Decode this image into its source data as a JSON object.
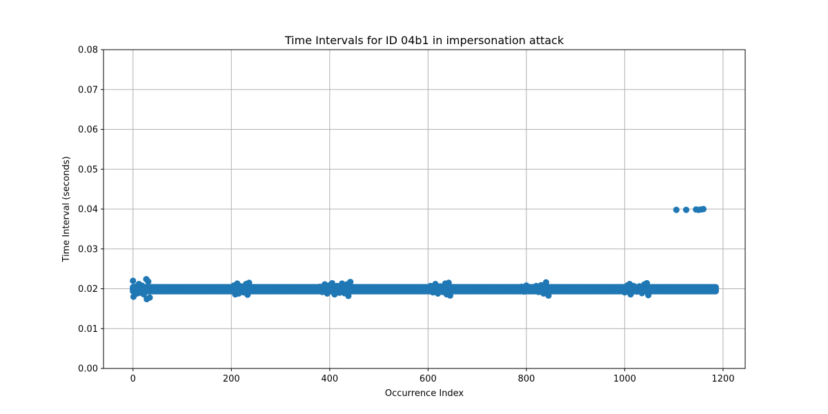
{
  "chart_data": {
    "type": "scatter",
    "title": "Time Intervals for ID 04b1 in impersonation attack",
    "xlabel": "Occurrence Index",
    "ylabel": "Time Interval (seconds)",
    "xlim": [
      -60,
      1245
    ],
    "ylim": [
      0.0,
      0.08
    ],
    "xticks": [
      0,
      200,
      400,
      600,
      800,
      1000,
      1200
    ],
    "xtick_labels": [
      "0",
      "200",
      "400",
      "600",
      "800",
      "1000",
      "1200"
    ],
    "yticks": [
      0.0,
      0.01,
      0.02,
      0.03,
      0.04,
      0.05,
      0.06,
      0.07,
      0.08
    ],
    "ytick_labels": [
      "0.00",
      "0.01",
      "0.02",
      "0.03",
      "0.04",
      "0.05",
      "0.06",
      "0.07",
      "0.08"
    ],
    "grid": true,
    "marker_color": "#1f77b4",
    "baseline_band": {
      "x_range": [
        0,
        1185
      ],
      "y_range": [
        0.0194,
        0.0204
      ]
    },
    "series": [
      {
        "points": [
          {
            "x": 0,
            "y": 0.022
          },
          {
            "x": 1,
            "y": 0.018
          },
          {
            "x": 5,
            "y": 0.0205
          },
          {
            "x": 8,
            "y": 0.0188
          },
          {
            "x": 12,
            "y": 0.0212
          },
          {
            "x": 15,
            "y": 0.019
          },
          {
            "x": 18,
            "y": 0.0208
          },
          {
            "x": 22,
            "y": 0.0186
          },
          {
            "x": 27,
            "y": 0.0224
          },
          {
            "x": 28,
            "y": 0.0174
          },
          {
            "x": 31,
            "y": 0.0218
          },
          {
            "x": 34,
            "y": 0.0178
          },
          {
            "x": 85,
            "y": 0.0202
          },
          {
            "x": 150,
            "y": 0.0201
          },
          {
            "x": 175,
            "y": 0.0199
          },
          {
            "x": 205,
            "y": 0.0208
          },
          {
            "x": 208,
            "y": 0.0186
          },
          {
            "x": 212,
            "y": 0.0213
          },
          {
            "x": 215,
            "y": 0.0188
          },
          {
            "x": 220,
            "y": 0.0206
          },
          {
            "x": 225,
            "y": 0.0191
          },
          {
            "x": 230,
            "y": 0.0212
          },
          {
            "x": 233,
            "y": 0.0185
          },
          {
            "x": 236,
            "y": 0.0215
          },
          {
            "x": 290,
            "y": 0.0201
          },
          {
            "x": 320,
            "y": 0.0202
          },
          {
            "x": 350,
            "y": 0.0199
          },
          {
            "x": 380,
            "y": 0.0205
          },
          {
            "x": 385,
            "y": 0.0192
          },
          {
            "x": 390,
            "y": 0.0211
          },
          {
            "x": 395,
            "y": 0.0188
          },
          {
            "x": 400,
            "y": 0.0209
          },
          {
            "x": 405,
            "y": 0.0214
          },
          {
            "x": 410,
            "y": 0.0186
          },
          {
            "x": 415,
            "y": 0.0207
          },
          {
            "x": 420,
            "y": 0.019
          },
          {
            "x": 425,
            "y": 0.0213
          },
          {
            "x": 430,
            "y": 0.0189
          },
          {
            "x": 435,
            "y": 0.0211
          },
          {
            "x": 438,
            "y": 0.0182
          },
          {
            "x": 442,
            "y": 0.0217
          },
          {
            "x": 490,
            "y": 0.0196
          },
          {
            "x": 560,
            "y": 0.0201
          },
          {
            "x": 605,
            "y": 0.0207
          },
          {
            "x": 610,
            "y": 0.0191
          },
          {
            "x": 615,
            "y": 0.0212
          },
          {
            "x": 620,
            "y": 0.0188
          },
          {
            "x": 625,
            "y": 0.0206
          },
          {
            "x": 630,
            "y": 0.0192
          },
          {
            "x": 635,
            "y": 0.0213
          },
          {
            "x": 638,
            "y": 0.0186
          },
          {
            "x": 642,
            "y": 0.0215
          },
          {
            "x": 645,
            "y": 0.0183
          },
          {
            "x": 705,
            "y": 0.0202
          },
          {
            "x": 750,
            "y": 0.0199
          },
          {
            "x": 790,
            "y": 0.0205
          },
          {
            "x": 795,
            "y": 0.0193
          },
          {
            "x": 800,
            "y": 0.0208
          },
          {
            "x": 815,
            "y": 0.0195
          },
          {
            "x": 820,
            "y": 0.0207
          },
          {
            "x": 825,
            "y": 0.0192
          },
          {
            "x": 830,
            "y": 0.0209
          },
          {
            "x": 835,
            "y": 0.0188
          },
          {
            "x": 840,
            "y": 0.0216
          },
          {
            "x": 845,
            "y": 0.0183
          },
          {
            "x": 880,
            "y": 0.0201
          },
          {
            "x": 930,
            "y": 0.0199
          },
          {
            "x": 975,
            "y": 0.0202
          },
          {
            "x": 1000,
            "y": 0.0191
          },
          {
            "x": 1005,
            "y": 0.0208
          },
          {
            "x": 1010,
            "y": 0.0212
          },
          {
            "x": 1012,
            "y": 0.0186
          },
          {
            "x": 1018,
            "y": 0.0207
          },
          {
            "x": 1025,
            "y": 0.0193
          },
          {
            "x": 1030,
            "y": 0.0206
          },
          {
            "x": 1035,
            "y": 0.0189
          },
          {
            "x": 1040,
            "y": 0.0211
          },
          {
            "x": 1045,
            "y": 0.0214
          },
          {
            "x": 1048,
            "y": 0.0184
          },
          {
            "x": 1075,
            "y": 0.0201
          },
          {
            "x": 1105,
            "y": 0.0398
          },
          {
            "x": 1125,
            "y": 0.0398
          },
          {
            "x": 1145,
            "y": 0.0399
          },
          {
            "x": 1150,
            "y": 0.0398
          },
          {
            "x": 1155,
            "y": 0.0399
          },
          {
            "x": 1160,
            "y": 0.04
          },
          {
            "x": 1180,
            "y": 0.0203
          },
          {
            "x": 1185,
            "y": 0.0197
          }
        ]
      }
    ]
  }
}
